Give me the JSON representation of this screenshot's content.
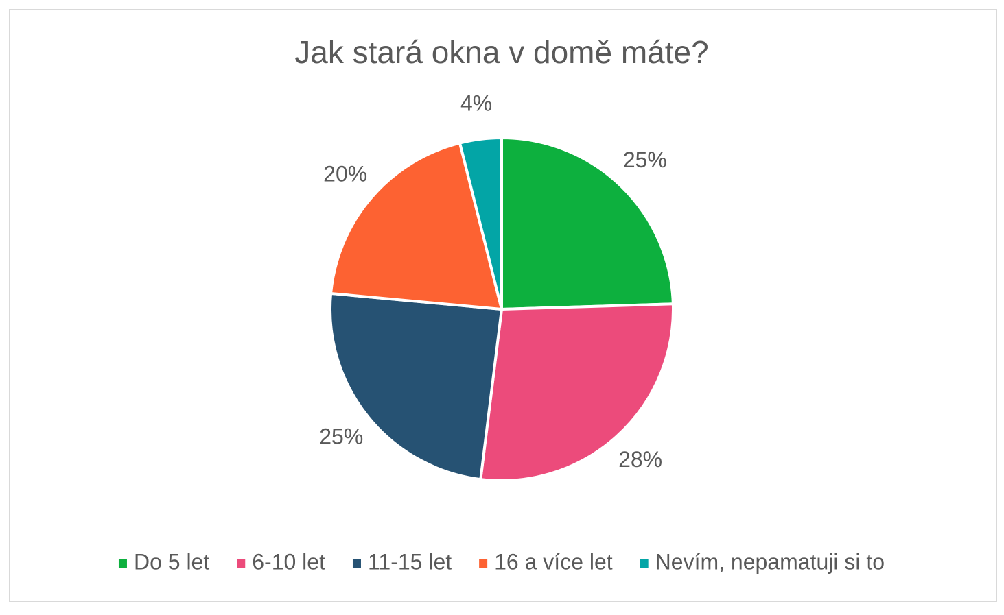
{
  "chart_data": {
    "type": "pie",
    "title": "Jak stará okna v domě máte?",
    "categories": [
      "Do 5 let",
      "6-10 let",
      "11-15 let",
      "16 a více let",
      "Nevím, nepamatuji si to"
    ],
    "values": [
      25,
      28,
      25,
      20,
      4
    ],
    "value_labels": [
      "25%",
      "28%",
      "25%",
      "20%",
      "4%"
    ],
    "colors": [
      "#0db03e",
      "#ec4b7b",
      "#265273",
      "#fd6232",
      "#03a5a6"
    ],
    "legend": "bottom"
  }
}
